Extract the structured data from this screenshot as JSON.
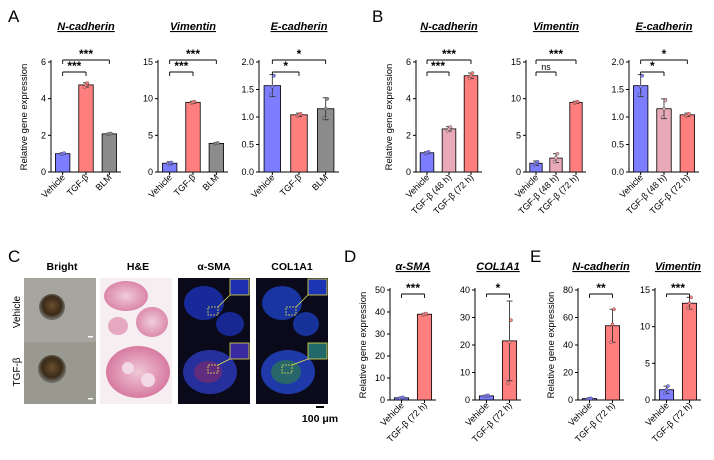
{
  "panel_letters": [
    "A",
    "B",
    "C",
    "D",
    "E"
  ],
  "colors": {
    "vehicle": "#7d7dff",
    "tgf": "#ff7f7f",
    "tgf48": "#e8aab8",
    "blm": "#8c8c8c"
  },
  "chart_data": [
    {
      "id": "A1",
      "panel": "A",
      "type": "bar",
      "title": "N-cadherin",
      "ylabel": "Relative gene expression",
      "categories": [
        "Vehicle",
        "TGF-β",
        "BLM"
      ],
      "values": [
        1.0,
        4.75,
        2.08
      ],
      "errors": [
        0.05,
        0.12,
        0.04
      ],
      "points": [
        [
          0.97,
          1.0,
          1.03
        ],
        [
          4.63,
          4.75,
          4.85
        ],
        [
          2.05,
          2.08,
          2.1
        ]
      ],
      "colors": [
        "vehicle",
        "tgf",
        "blm"
      ],
      "ylim": [
        0,
        6
      ],
      "yticks": [
        0,
        2,
        4,
        6
      ],
      "brackets": [
        {
          "from": 0,
          "to": 1,
          "label": "***"
        },
        {
          "from": 0,
          "to": 2,
          "label": "***"
        }
      ]
    },
    {
      "id": "A2",
      "panel": "A",
      "type": "bar",
      "title": "Vimentin",
      "ylabel": "",
      "categories": [
        "Vehicle",
        "TGF-β",
        "BLM"
      ],
      "values": [
        1.2,
        9.5,
        3.9
      ],
      "errors": [
        0.2,
        0.15,
        0.1
      ],
      "points": [
        [
          1.1,
          1.2,
          1.3
        ],
        [
          9.4,
          9.5,
          9.6
        ],
        [
          3.85,
          3.9,
          3.95
        ]
      ],
      "colors": [
        "vehicle",
        "tgf",
        "blm"
      ],
      "ylim": [
        0,
        15
      ],
      "yticks": [
        0,
        5,
        10,
        15
      ],
      "brackets": [
        {
          "from": 0,
          "to": 1,
          "label": "***"
        },
        {
          "from": 0,
          "to": 2,
          "label": "***"
        }
      ]
    },
    {
      "id": "A3",
      "panel": "A",
      "type": "bar",
      "title": "E-cadherin",
      "ylabel": "",
      "categories": [
        "Vehicle",
        "TGF-β",
        "BLM"
      ],
      "values": [
        1.57,
        1.04,
        1.15
      ],
      "errors": [
        0.2,
        0.03,
        0.2
      ],
      "points": [
        [
          1.4,
          1.55,
          1.75
        ],
        [
          1.02,
          1.04,
          1.06
        ],
        [
          0.98,
          1.15,
          1.33
        ]
      ],
      "colors": [
        "vehicle",
        "tgf",
        "blm"
      ],
      "ylim": [
        0,
        2.0
      ],
      "yticks": [
        0,
        0.5,
        1.0,
        1.5,
        2.0
      ],
      "brackets": [
        {
          "from": 0,
          "to": 1,
          "label": "*"
        },
        {
          "from": 0,
          "to": 2,
          "label": "*"
        }
      ]
    },
    {
      "id": "B1",
      "panel": "B",
      "type": "bar",
      "title": "N-cadherin",
      "ylabel": "Relative gene expression",
      "categories": [
        "Vehicle",
        "TGF-β (48 h)",
        "TGF-β (72 h)"
      ],
      "values": [
        1.05,
        2.35,
        5.25
      ],
      "errors": [
        0.05,
        0.12,
        0.15
      ],
      "points": [
        [
          1.0,
          1.05,
          1.1
        ],
        [
          2.25,
          2.35,
          2.45
        ],
        [
          5.1,
          5.25,
          5.4
        ]
      ],
      "colors": [
        "vehicle",
        "tgf48",
        "tgf"
      ],
      "ylim": [
        0,
        6
      ],
      "yticks": [
        0,
        2,
        4,
        6
      ],
      "brackets": [
        {
          "from": 0,
          "to": 1,
          "label": "***"
        },
        {
          "from": 0,
          "to": 2,
          "label": "***"
        }
      ]
    },
    {
      "id": "B2",
      "panel": "B",
      "type": "bar",
      "title": "Vimentin",
      "ylabel": "",
      "categories": [
        "Vehicle",
        "TGF-β (48 h)",
        "TGF-β (72 h)"
      ],
      "values": [
        1.2,
        1.9,
        9.5
      ],
      "errors": [
        0.3,
        0.6,
        0.15
      ],
      "points": [
        [
          1.0,
          1.2,
          1.4
        ],
        [
          1.4,
          1.9,
          2.5
        ],
        [
          9.4,
          9.5,
          9.6
        ]
      ],
      "colors": [
        "vehicle",
        "tgf48",
        "tgf"
      ],
      "ylim": [
        0,
        15
      ],
      "yticks": [
        0,
        5,
        10,
        15
      ],
      "brackets": [
        {
          "from": 0,
          "to": 1,
          "label": "ns"
        },
        {
          "from": 0,
          "to": 2,
          "label": "***"
        }
      ]
    },
    {
      "id": "B3",
      "panel": "B",
      "type": "bar",
      "title": "E-cadherin",
      "ylabel": "",
      "categories": [
        "Vehicle",
        "TGF-β (48 h)",
        "TGF-β (72 h)"
      ],
      "values": [
        1.57,
        1.15,
        1.04
      ],
      "errors": [
        0.2,
        0.18,
        0.03
      ],
      "points": [
        [
          1.4,
          1.55,
          1.75
        ],
        [
          1.0,
          1.15,
          1.3
        ],
        [
          1.02,
          1.04,
          1.06
        ]
      ],
      "colors": [
        "vehicle",
        "tgf48",
        "tgf"
      ],
      "ylim": [
        0,
        2.0
      ],
      "yticks": [
        0,
        0.5,
        1.0,
        1.5,
        2.0
      ],
      "brackets": [
        {
          "from": 0,
          "to": 1,
          "label": "*"
        },
        {
          "from": 0,
          "to": 2,
          "label": "*"
        }
      ]
    },
    {
      "id": "D1",
      "panel": "D",
      "type": "bar",
      "title": "α-SMA",
      "ylabel": "Relative gene expression",
      "categories": [
        "Vehicle",
        "TGF-β (72 h)"
      ],
      "values": [
        1.0,
        39.0
      ],
      "errors": [
        0.3,
        0.4
      ],
      "points": [
        [
          0.8,
          1.0,
          1.2
        ],
        [
          38.7,
          39.0,
          39.3
        ]
      ],
      "colors": [
        "vehicle",
        "tgf"
      ],
      "ylim": [
        0,
        50
      ],
      "yticks": [
        0,
        10,
        20,
        30,
        40,
        50
      ],
      "brackets": [
        {
          "from": 0,
          "to": 1,
          "label": "***"
        }
      ]
    },
    {
      "id": "D2",
      "panel": "D",
      "type": "bar",
      "title": "COL1A1",
      "ylabel": "",
      "categories": [
        "Vehicle",
        "TGF-β (72 h)"
      ],
      "values": [
        1.5,
        21.5
      ],
      "errors": [
        0.3,
        14.5
      ],
      "points": [
        [
          1.3,
          1.5,
          1.7
        ],
        [
          6.0,
          21.0,
          29.0
        ]
      ],
      "colors": [
        "vehicle",
        "tgf"
      ],
      "ylim": [
        0,
        40
      ],
      "yticks": [
        0,
        10,
        20,
        30,
        40
      ],
      "brackets": [
        {
          "from": 0,
          "to": 1,
          "label": "*"
        }
      ]
    },
    {
      "id": "E1",
      "panel": "E",
      "type": "bar",
      "title": "N-cadherin",
      "ylabel": "Relative gene expression",
      "categories": [
        "Vehicle",
        "TGF-β (72 h)"
      ],
      "values": [
        1.0,
        54.0
      ],
      "errors": [
        0.3,
        12.0
      ],
      "points": [
        [
          0.8,
          1.0,
          1.2
        ],
        [
          42.0,
          55.0,
          66.0
        ]
      ],
      "colors": [
        "vehicle",
        "tgf"
      ],
      "ylim": [
        0,
        80
      ],
      "yticks": [
        0,
        20,
        40,
        60,
        80
      ],
      "brackets": [
        {
          "from": 0,
          "to": 1,
          "label": "**"
        }
      ]
    },
    {
      "id": "E2",
      "panel": "E",
      "type": "bar",
      "title": "Vimentin",
      "ylabel": "",
      "categories": [
        "Vehicle",
        "TGF-β (72 h)"
      ],
      "values": [
        1.4,
        13.2
      ],
      "errors": [
        0.5,
        0.8
      ],
      "points": [
        [
          0.9,
          1.4,
          1.9
        ],
        [
          12.5,
          13.2,
          14.0
        ]
      ],
      "colors": [
        "vehicle",
        "tgf"
      ],
      "ylim": [
        0,
        15
      ],
      "yticks": [
        0,
        5,
        10,
        15
      ],
      "brackets": [
        {
          "from": 0,
          "to": 1,
          "label": "***"
        }
      ]
    }
  ],
  "panel_c": {
    "columns": [
      "Bright",
      "H&E",
      "α-SMA",
      "COL1A1"
    ],
    "rows": [
      "Vehicle",
      "TGF-β"
    ],
    "scale_bar_label": "100 μm"
  }
}
